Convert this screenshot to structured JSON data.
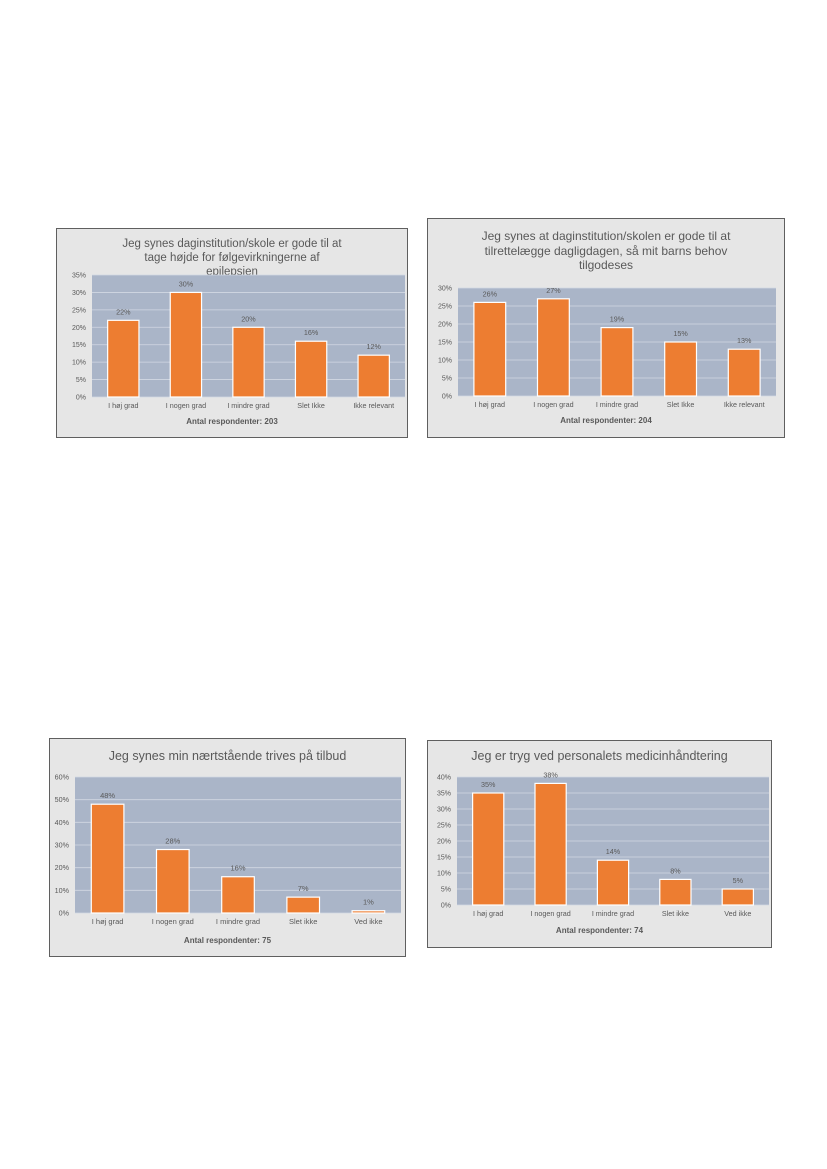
{
  "chart_data": [
    {
      "type": "bar",
      "title": "Jeg synes daginstitution/skole er gode til at tage højde for følgevirkningerne af epilepsien",
      "categories": [
        "I høj grad",
        "I nogen grad",
        "I mindre grad",
        "Slet Ikke",
        "Ikke relevant"
      ],
      "values": [
        22,
        30,
        20,
        16,
        12
      ],
      "data_labels": [
        "22%",
        "30%",
        "20%",
        "16%",
        "12%"
      ],
      "y_ticks": [
        "0%",
        "5%",
        "10%",
        "15%",
        "20%",
        "25%",
        "30%",
        "35%"
      ],
      "ylim": [
        0,
        35
      ],
      "respondents": "Antal respondenter: 203",
      "grid": true
    },
    {
      "type": "bar",
      "title": "Jeg synes at daginstitution/skolen er gode til at tilrettelægge dagligdagen, så mit barns behov tilgodeses",
      "categories": [
        "I høj grad",
        "I nogen grad",
        "I mindre grad",
        "Slet Ikke",
        "Ikke relevant"
      ],
      "values": [
        26,
        27,
        19,
        15,
        13
      ],
      "data_labels": [
        "26%",
        "27%",
        "19%",
        "15%",
        "13%"
      ],
      "y_ticks": [
        "0%",
        "5%",
        "10%",
        "15%",
        "20%",
        "25%",
        "30%"
      ],
      "ylim": [
        0,
        30
      ],
      "respondents": "Antal respondenter: 204",
      "grid": true
    },
    {
      "type": "bar",
      "title": "Jeg synes min nærtstående trives på tilbud",
      "categories": [
        "I høj grad",
        "I nogen grad",
        "I mindre grad",
        "Slet ikke",
        "Ved ikke"
      ],
      "values": [
        48,
        28,
        16,
        7,
        1
      ],
      "data_labels": [
        "48%",
        "28%",
        "16%",
        "7%",
        "1%"
      ],
      "y_ticks": [
        "0%",
        "10%",
        "20%",
        "30%",
        "40%",
        "50%",
        "60%"
      ],
      "ylim": [
        0,
        60
      ],
      "respondents": "Antal respondenter: 75",
      "grid": true
    },
    {
      "type": "bar",
      "title": "Jeg er tryg ved personalets medicinhåndtering",
      "categories": [
        "I høj grad",
        "I nogen grad",
        "I mindre grad",
        "Slet ikke",
        "Ved ikke"
      ],
      "values": [
        35,
        38,
        14,
        8,
        5
      ],
      "data_labels": [
        "35%",
        "38%",
        "14%",
        "8%",
        "5%"
      ],
      "y_ticks": [
        "0%",
        "5%",
        "10%",
        "15%",
        "20%",
        "25%",
        "30%",
        "35%",
        "40%"
      ],
      "ylim": [
        0,
        40
      ],
      "respondents": "Antal respondenter: 74",
      "grid": true
    }
  ],
  "colors": {
    "bar": "#ed7d31",
    "plot_bg": "#aab5c8",
    "frame_bg": "#e6e6e6",
    "text": "#595959"
  }
}
